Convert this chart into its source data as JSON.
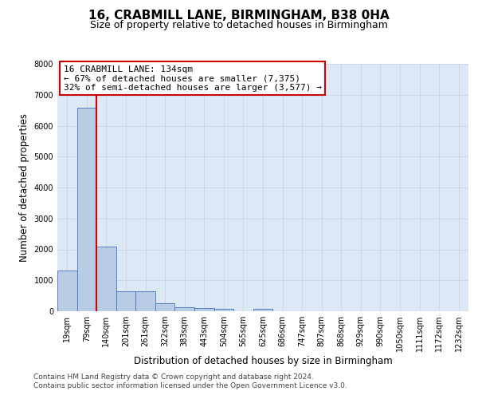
{
  "title_line1": "16, CRABMILL LANE, BIRMINGHAM, B38 0HA",
  "title_line2": "Size of property relative to detached houses in Birmingham",
  "xlabel": "Distribution of detached houses by size in Birmingham",
  "ylabel": "Number of detached properties",
  "categories": [
    "19sqm",
    "79sqm",
    "140sqm",
    "201sqm",
    "261sqm",
    "322sqm",
    "383sqm",
    "443sqm",
    "504sqm",
    "565sqm",
    "625sqm",
    "686sqm",
    "747sqm",
    "807sqm",
    "868sqm",
    "929sqm",
    "990sqm",
    "1050sqm",
    "1111sqm",
    "1172sqm",
    "1232sqm"
  ],
  "values": [
    1310,
    6580,
    2080,
    650,
    650,
    260,
    140,
    110,
    80,
    0,
    80,
    0,
    0,
    0,
    0,
    0,
    0,
    0,
    0,
    0,
    0
  ],
  "bar_color": "#b8cce4",
  "bar_edge_color": "#4472c4",
  "grid_color": "#d0d8e8",
  "background_color": "#dde8f5",
  "property_line_x": 1.5,
  "annotation_text_line1": "16 CRABMILL LANE: 134sqm",
  "annotation_text_line2": "← 67% of detached houses are smaller (7,375)",
  "annotation_text_line3": "32% of semi-detached houses are larger (3,577) →",
  "annotation_box_edge": "#cc0000",
  "vline_color": "#cc0000",
  "ylim": [
    0,
    8000
  ],
  "yticks": [
    0,
    1000,
    2000,
    3000,
    4000,
    5000,
    6000,
    7000,
    8000
  ],
  "title_fontsize": 11,
  "subtitle_fontsize": 9,
  "axis_label_fontsize": 8.5,
  "tick_fontsize": 7,
  "annotation_fontsize": 8,
  "footer_fontsize": 6.5,
  "footer_line1": "Contains HM Land Registry data © Crown copyright and database right 2024.",
  "footer_line2": "Contains public sector information licensed under the Open Government Licence v3.0."
}
